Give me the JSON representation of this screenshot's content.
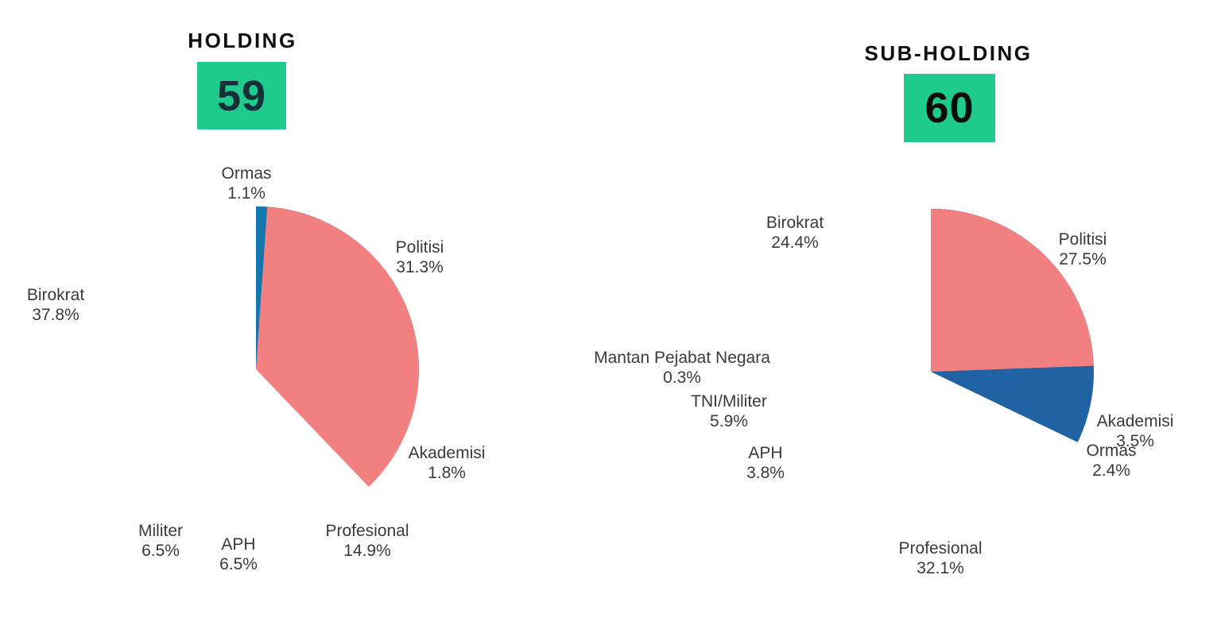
{
  "chart_data": [
    {
      "type": "pie",
      "title": "HOLDING",
      "badge": {
        "value": "59",
        "bg": "#1fcb8c",
        "fg": "#16303a"
      },
      "start_angle_deg": -90,
      "direction": "clockwise",
      "legend": "none (direct labels around pie)",
      "slices": [
        {
          "label": "Politisi",
          "pct": 31.3,
          "pct_display": "31.3%",
          "color": "#29dce8"
        },
        {
          "label": "Akademisi",
          "pct": 1.8,
          "pct_display": "1.8%",
          "color": "#15b0d6"
        },
        {
          "label": "Profesional",
          "pct": 14.9,
          "pct_display": "14.9%",
          "color": "#2063a4"
        },
        {
          "label": "APH",
          "pct": 6.5,
          "pct_display": "6.5%",
          "color": "#37346f"
        },
        {
          "label": "Militer",
          "pct": 6.5,
          "pct_display": "6.5%",
          "color": "#7a3d68"
        },
        {
          "label": "Birokrat",
          "pct": 37.8,
          "pct_display": "37.8%",
          "color": "#f28080"
        },
        {
          "label": "Ormas",
          "pct": 1.1,
          "pct_display": "1.1%",
          "color": "#1377ae"
        }
      ]
    },
    {
      "type": "pie",
      "title": "SUB-HOLDING",
      "badge": {
        "value": "60",
        "bg": "#1fcb8c",
        "fg": "#0d0d0d"
      },
      "start_angle_deg": -90,
      "direction": "clockwise",
      "legend": "none (direct labels around pie)",
      "slices": [
        {
          "label": "Politisi",
          "pct": 27.5,
          "pct_display": "27.5%",
          "color": "#29dce8"
        },
        {
          "label": "Akademisi",
          "pct": 3.5,
          "pct_display": "3.5%",
          "color": "#17b8d8"
        },
        {
          "label": "Ormas",
          "pct": 2.4,
          "pct_display": "2.4%",
          "color": "#0e8fbc"
        },
        {
          "label": "Profesional",
          "pct": 32.1,
          "pct_display": "32.1%",
          "color": "#2063a4"
        },
        {
          "label": "APH",
          "pct": 3.8,
          "pct_display": "3.8%",
          "color": "#37346f"
        },
        {
          "label": "TNI/Militer",
          "pct": 5.9,
          "pct_display": "5.9%",
          "color": "#653a6b"
        },
        {
          "label": "Mantan Pejabat Negara",
          "pct": 0.3,
          "pct_display": "0.3%",
          "color": "#96405c"
        },
        {
          "label": "Birokrat",
          "pct": 24.4,
          "pct_display": "24.4%",
          "color": "#f28080"
        }
      ]
    }
  ]
}
